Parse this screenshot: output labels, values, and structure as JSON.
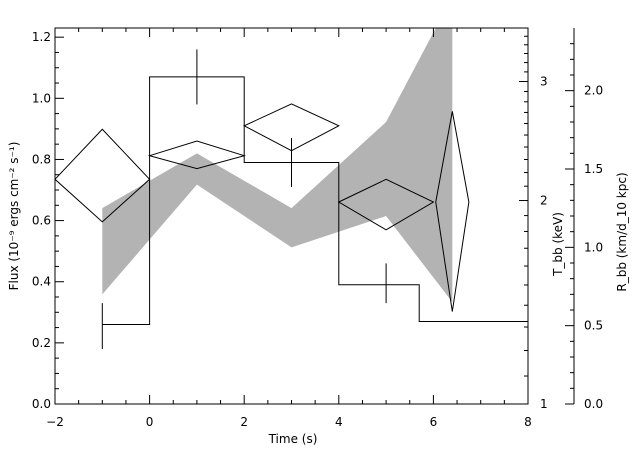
{
  "chart_data": {
    "type": "line",
    "xlabel": "Time (s)",
    "x_ticks": [
      "−2",
      "0",
      "2",
      "4",
      "6",
      "8"
    ],
    "xlim": [
      -2,
      8
    ],
    "y_left": {
      "label": "Flux (10⁻⁹ ergs cm⁻² s⁻¹)",
      "ylim": [
        0,
        1.23
      ],
      "ticks": [
        "0.0",
        "0.2",
        "0.4",
        "0.6",
        "0.8",
        "1.0",
        "1.2"
      ]
    },
    "y_mid": {
      "label": "T_bb (keV)",
      "scale": "log",
      "ylim": [
        1,
        3.6
      ],
      "ticks": [
        "1",
        "2",
        "3"
      ]
    },
    "y_right": {
      "label": "R_bb (km/d_10 kpc)",
      "ylim": [
        0,
        2.4
      ],
      "ticks": [
        "0.0",
        "0.5",
        "1.0",
        "1.5",
        "2.0"
      ]
    },
    "flux_histogram": {
      "bins": [
        {
          "x0": -1,
          "x1": 0,
          "value": 0.26
        },
        {
          "x0": 0,
          "x1": 2,
          "value": 1.07
        },
        {
          "x0": 2,
          "x1": 4,
          "value": 0.79
        },
        {
          "x0": 4,
          "x1": 5.7,
          "value": 0.39
        },
        {
          "x0": 5.7,
          "x1": 8,
          "value": 0.27
        }
      ]
    },
    "flux_errors": [
      {
        "x": -1,
        "value": 0.26,
        "lo": 0.18,
        "hi": 0.33
      },
      {
        "x": 1,
        "value": 1.07,
        "lo": 0.98,
        "hi": 1.16
      },
      {
        "x": 3,
        "value": 0.79,
        "lo": 0.71,
        "hi": 0.87
      },
      {
        "x": 5,
        "value": 0.39,
        "lo": 0.33,
        "hi": 0.46
      }
    ],
    "temperature_diamonds": [
      {
        "x": -1,
        "xerr": 1,
        "value": 2.15,
        "lo": 1.86,
        "hi": 2.55
      },
      {
        "x": 1,
        "xerr": 1,
        "value": 2.33,
        "lo": 2.23,
        "hi": 2.45
      },
      {
        "x": 3,
        "xerr": 1,
        "value": 2.58,
        "lo": 2.37,
        "hi": 2.78
      },
      {
        "x": 5,
        "xerr": 1,
        "value": 1.99,
        "lo": 1.81,
        "hi": 2.15
      },
      {
        "x": 6.4,
        "xerr": 0.35,
        "value": 1.99,
        "lo": 1.37,
        "hi": 2.71
      }
    ],
    "radius_band": {
      "x": [
        -1,
        1,
        3,
        5,
        6.4
      ],
      "lo": [
        0.7,
        1.4,
        1.0,
        1.2,
        0.65
      ],
      "hi": [
        1.25,
        1.6,
        1.25,
        1.8,
        2.6
      ]
    },
    "colors": {
      "band": "#b3b3b3",
      "line": "#000000"
    }
  }
}
